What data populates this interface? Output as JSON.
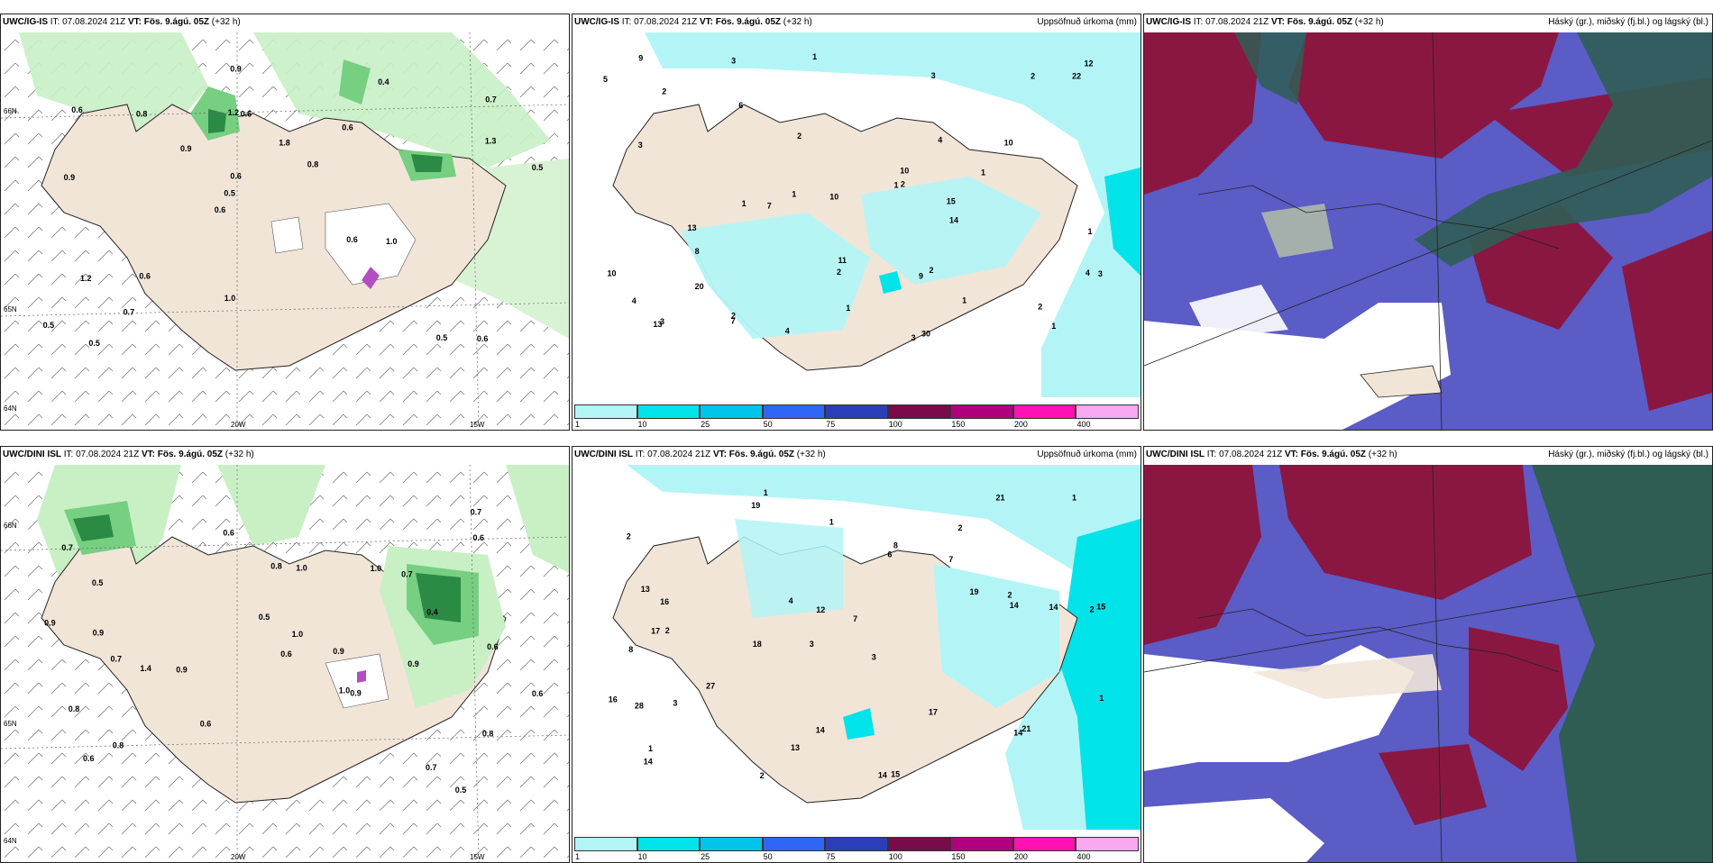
{
  "panels": [
    {
      "id": "p-top-left",
      "header": {
        "model": "UWC/IG-IS",
        "it_label": "IT:",
        "it_value": "07.08.2024 21Z",
        "vt_label": "VT:",
        "vt_value": "Fös. 9.ágú. 05Z",
        "lead": "(+32 h)",
        "right_title": ""
      },
      "values": [
        "0.6",
        "0.9",
        "0.7",
        "0.6",
        "0.6",
        "0.5",
        "1.2",
        "1.8",
        "1.2",
        "0.9",
        "0.5",
        "0.7",
        "0.6",
        "0.8",
        "1.0",
        "0.6",
        "0.9",
        "0.5",
        "0.6",
        "1.3",
        "0.5",
        "1.0",
        "0.6",
        "0.8",
        "0.4",
        "0.6",
        "0.5"
      ],
      "axis_labels": [
        "66N",
        "65N",
        "64N",
        "20W",
        "15W"
      ]
    },
    {
      "id": "p-top-mid",
      "header": {
        "model": "UWC/IG-IS",
        "it_label": "IT:",
        "it_value": "07.08.2024 21Z",
        "vt_label": "VT:",
        "vt_value": "Fös. 9.ágú. 05Z",
        "lead": "(+32 h)",
        "right_title": "Uppsöfnuð úrkoma (mm)"
      },
      "values": [
        "4",
        "3",
        "2",
        "1",
        "3",
        "2",
        "1",
        "1",
        "1",
        "2",
        "2",
        "1",
        "1",
        "2",
        "3",
        "1",
        "3",
        "7",
        "7",
        "5",
        "9",
        "12",
        "10",
        "13",
        "10",
        "13",
        "10",
        "8",
        "9",
        "14",
        "10",
        "30",
        "11",
        "22",
        "20",
        "15",
        "4",
        "4",
        "4",
        "2",
        "2",
        "1",
        "3",
        "3",
        "6",
        "2",
        "1"
      ],
      "colorbar": {
        "ticks": [
          "1",
          "10",
          "25",
          "50",
          "75",
          "100",
          "150",
          "200",
          "400"
        ],
        "colors": [
          "#b3f5f7",
          "#00e3e8",
          "#00c4ea",
          "#2f66f5",
          "#2a3fb7",
          "#7a0b4a",
          "#b1007e",
          "#ff11b4",
          "#f7a8f0"
        ]
      }
    },
    {
      "id": "p-top-right",
      "header": {
        "model": "UWC/IG-IS",
        "it_label": "IT:",
        "it_value": "07.08.2024 21Z",
        "vt_label": "VT:",
        "vt_value": "Fös. 9.ágú. 05Z",
        "lead": "(+32 h)",
        "right_title": "Háský (gr.), miðský (fj.bl.) og lágský (bl.)"
      }
    },
    {
      "id": "p-bottom-left",
      "header": {
        "model": "UWC/DINI ISL",
        "it_label": "IT:",
        "it_value": "07.08.2024 21Z",
        "vt_label": "VT:",
        "vt_value": "Fös. 9.ágú. 05Z",
        "lead": "(+32 h)",
        "right_title": ""
      },
      "values": [
        "0.5",
        "0.7",
        "1.0",
        "0.7",
        "0.8",
        "0.5",
        "0.8",
        "0.9",
        "0.7",
        "0.8",
        "1.0",
        "0.7",
        "0.6",
        "0.6",
        "0.9",
        "0.8",
        "0.9",
        "1.0",
        "0.9",
        "0.6",
        "0.7",
        "1.0",
        "0.4",
        "0.6",
        "0.6",
        "0.9",
        "1.4",
        "0.6",
        "0.5",
        "0.6",
        "0.9"
      ],
      "axis_labels": [
        "66N",
        "65N",
        "64N",
        "20W",
        "15W"
      ]
    },
    {
      "id": "p-bottom-mid",
      "header": {
        "model": "UWC/DINI ISL",
        "it_label": "IT:",
        "it_value": "07.08.2024 21Z",
        "vt_label": "VT:",
        "vt_value": "Fös. 9.ágú. 05Z",
        "lead": "(+32 h)",
        "right_title": "Uppsöfnuð úrkoma (mm)"
      },
      "values": [
        "1",
        "2",
        "2",
        "3",
        "3",
        "2",
        "2",
        "7",
        "8",
        "6",
        "7",
        "14",
        "19",
        "18",
        "14",
        "15",
        "14",
        "21",
        "19",
        "27",
        "16",
        "17",
        "15",
        "14",
        "16",
        "13",
        "12",
        "14",
        "21",
        "28",
        "14",
        "8",
        "3",
        "4",
        "17",
        "1",
        "2",
        "13",
        "1",
        "1",
        "1",
        "2"
      ],
      "colorbar": {
        "ticks": [
          "1",
          "10",
          "25",
          "50",
          "75",
          "100",
          "150",
          "200",
          "400"
        ],
        "colors": [
          "#b3f5f7",
          "#00e3e8",
          "#00c4ea",
          "#2f66f5",
          "#2a3fb7",
          "#7a0b4a",
          "#b1007e",
          "#ff11b4",
          "#f7a8f0"
        ]
      }
    },
    {
      "id": "p-bottom-right",
      "header": {
        "model": "UWC/DINI ISL",
        "it_label": "IT:",
        "it_value": "07.08.2024 21Z",
        "vt_label": "VT:",
        "vt_value": "Fös. 9.ágú. 05Z",
        "lead": "(+32 h)",
        "right_title": "Háský (gr.), miðský (fj.bl.) og lágský (bl.)"
      }
    }
  ],
  "colors": {
    "land": "#f1e5d8",
    "precip_light": "#c8f0c4",
    "precip_mid": "#77cf82",
    "precip_dark": "#2b8a44",
    "accum_light": "#b3f5f7",
    "accum_cyan": "#00e3e8",
    "cloud_high": "#8a1742",
    "cloud_mid": "#5b5cc6",
    "cloud_low": "#2f5d54"
  }
}
